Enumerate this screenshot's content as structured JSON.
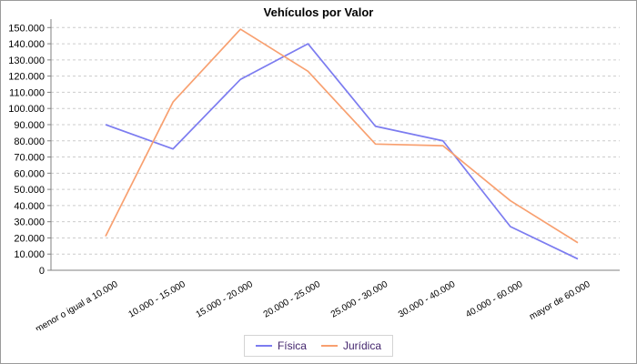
{
  "title": "Vehículos por Valor",
  "chart_data": {
    "type": "line",
    "title": "Vehículos por Valor",
    "categories": [
      "menor o igual a 10.000",
      "10.000 - 15.000",
      "15.000 - 20.000",
      "20.000 - 25.000",
      "25.000 - 30.000",
      "30.000 - 40.000",
      "40.000 - 60.000",
      "mayor de 60.000"
    ],
    "series": [
      {
        "name": "Física",
        "color": "#7c7cf0",
        "values": [
          90000,
          75000,
          118000,
          140000,
          89000,
          80000,
          27000,
          7000
        ]
      },
      {
        "name": "Jurídica",
        "color": "#f8a070",
        "values": [
          21000,
          104000,
          149000,
          123000,
          78000,
          77000,
          43000,
          17000
        ]
      }
    ],
    "ylim": [
      0,
      150000
    ],
    "ytick_step": 10000,
    "ytick_labels": [
      "0",
      "10.000",
      "20.000",
      "30.000",
      "40.000",
      "50.000",
      "60.000",
      "70.000",
      "80.000",
      "90.000",
      "100.000",
      "110.000",
      "120.000",
      "130.000",
      "140.000",
      "150.000"
    ],
    "xlabel": "",
    "ylabel": "",
    "grid": "horizontal-dashed",
    "x_label_rotation_deg": -30,
    "legend_position": "bottom-center",
    "number_format": "dot-thousands"
  },
  "colors": {
    "background": "#ffffff",
    "frame_border": "#9a9a9a",
    "grid_line": "#cccccc",
    "axis_line": "#808080",
    "tick_text": "#000000",
    "legend_border": "#d4d4d4",
    "legend_text": "#43256d"
  }
}
